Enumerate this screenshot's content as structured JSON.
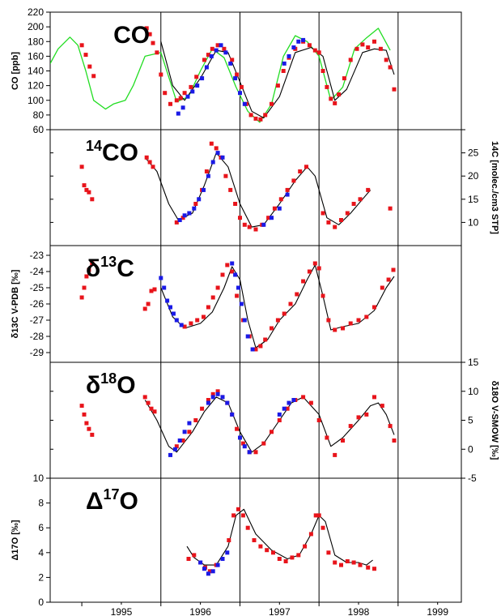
{
  "colors": {
    "red_series": "#e8141b",
    "blue_series": "#1a1ae6",
    "model_line": "#000000",
    "green_line": "#22dd22",
    "frame": "#000000"
  },
  "x_axis": {
    "ticks": [
      "1995",
      "1996",
      "1997",
      "1998",
      "1999"
    ],
    "range": [
      1994.6,
      1999.8
    ],
    "year_dividers": [
      1996.0,
      1997.0,
      1998.0,
      1999.0
    ]
  },
  "chart_data": [
    {
      "type": "scatter",
      "panel_title": "CO",
      "ylabel": "CO [ppb]",
      "ylim": [
        60,
        220
      ],
      "y_ticks": [
        60,
        80,
        100,
        120,
        140,
        160,
        180,
        200,
        220
      ],
      "series": [
        {
          "kind": "red",
          "x": [
            1995.0,
            1995.05,
            1995.1,
            1995.15,
            1995.82,
            1995.86,
            1995.9,
            1995.95,
            1996.0,
            1996.05,
            1996.12,
            1996.2,
            1996.25,
            1996.3,
            1996.38,
            1996.45,
            1996.55,
            1996.6,
            1996.65,
            1996.72,
            1996.8,
            1996.9,
            1996.96,
            1997.02,
            1997.08,
            1997.14,
            1997.2,
            1997.26,
            1997.32,
            1997.4,
            1997.48,
            1997.55,
            1997.62,
            1997.7,
            1997.8,
            1997.88,
            1997.95,
            1998.0,
            1998.05,
            1998.1,
            1998.15,
            1998.2,
            1998.25,
            1998.32,
            1998.4,
            1998.48,
            1998.55,
            1998.62,
            1998.7,
            1998.78,
            1998.85,
            1998.9,
            1998.95
          ],
          "y": [
            175,
            162,
            146,
            133,
            198,
            190,
            178,
            165,
            135,
            110,
            95,
            100,
            103,
            110,
            118,
            132,
            155,
            162,
            170,
            175,
            170,
            155,
            135,
            118,
            95,
            80,
            75,
            74,
            80,
            95,
            120,
            140,
            158,
            170,
            180,
            175,
            168,
            165,
            140,
            118,
            102,
            96,
            108,
            130,
            155,
            170,
            176,
            172,
            180,
            170,
            155,
            145,
            115
          ]
        },
        {
          "kind": "blue",
          "x": [
            1996.22,
            1996.28,
            1996.34,
            1996.4,
            1996.46,
            1996.52,
            1996.58,
            1996.64,
            1996.7,
            1996.76,
            1996.82,
            1996.88,
            1996.94,
            1997.0,
            1997.06,
            1997.56,
            1997.62,
            1997.68,
            1997.74,
            1997.8
          ],
          "y": [
            82,
            90,
            105,
            112,
            120,
            130,
            145,
            160,
            168,
            175,
            165,
            150,
            130,
            110,
            95,
            150,
            160,
            172,
            180,
            182
          ]
        }
      ],
      "model": {
        "x": [
          1996.0,
          1996.15,
          1996.3,
          1996.5,
          1996.7,
          1996.85,
          1997.0,
          1997.15,
          1997.3,
          1997.5,
          1997.7,
          1997.9,
          1998.05,
          1998.2,
          1998.35,
          1998.55,
          1998.7,
          1998.85,
          1998.95
        ],
        "y": [
          180,
          120,
          100,
          130,
          168,
          165,
          125,
          85,
          76,
          105,
          165,
          172,
          160,
          100,
          115,
          165,
          170,
          168,
          135
        ]
      },
      "green": {
        "x": [
          1994.6,
          1994.7,
          1994.85,
          1994.95,
          1995.05,
          1995.15,
          1995.3,
          1995.4,
          1995.55,
          1995.65,
          1995.8,
          1996.0,
          1996.2,
          1996.35,
          1996.5,
          1996.65,
          1996.8,
          1996.95,
          1997.1,
          1997.25,
          1997.4,
          1997.55,
          1997.7,
          1997.85,
          1998.0,
          1998.15,
          1998.3,
          1998.45,
          1998.6,
          1998.75,
          1998.9
        ],
        "y": [
          150,
          170,
          186,
          175,
          140,
          100,
          88,
          95,
          100,
          120,
          160,
          165,
          98,
          105,
          140,
          170,
          158,
          118,
          85,
          70,
          95,
          160,
          188,
          180,
          160,
          100,
          118,
          170,
          185,
          198,
          168
        ]
      }
    },
    {
      "type": "scatter",
      "panel_title": "14CO",
      "panel_title_base": "CO",
      "panel_title_sup": "14",
      "ylabel_right": "14C [molec./cm3 STP]",
      "ylim": [
        5,
        30
      ],
      "y_ticks": [
        10,
        15,
        20,
        25,
        30
      ],
      "y_tick_labels": [
        "10",
        "15",
        "20",
        "25"
      ],
      "series": [
        {
          "kind": "red",
          "x": [
            1995.0,
            1995.03,
            1995.06,
            1995.09,
            1995.13,
            1995.82,
            1995.86,
            1995.9,
            1996.2,
            1996.28,
            1996.36,
            1996.44,
            1996.52,
            1996.58,
            1996.64,
            1996.7,
            1996.76,
            1996.82,
            1996.88,
            1996.94,
            1997.0,
            1997.06,
            1997.12,
            1997.2,
            1997.28,
            1997.36,
            1997.44,
            1997.52,
            1997.6,
            1997.68,
            1997.76,
            1997.84,
            1998.05,
            1998.12,
            1998.2,
            1998.28,
            1998.36,
            1998.44,
            1998.52,
            1998.62,
            1998.9
          ],
          "y": [
            22,
            18,
            17,
            16.5,
            15,
            24,
            23,
            22,
            10,
            11,
            12,
            14,
            17,
            21,
            27,
            26,
            24,
            20,
            17,
            14,
            11,
            9.5,
            9,
            8.5,
            9.5,
            11,
            13,
            15,
            17,
            19,
            21,
            22,
            12,
            10,
            9,
            10.5,
            12,
            14,
            15,
            17,
            13
          ]
        },
        {
          "kind": "blue",
          "x": [
            1996.24,
            1996.3,
            1996.36,
            1996.42,
            1996.48,
            1996.54,
            1996.6,
            1996.66,
            1996.72,
            1996.78,
            1997.3,
            1997.4,
            1997.5,
            1997.6
          ],
          "y": [
            10.5,
            11.5,
            12,
            13,
            15,
            17,
            20,
            23,
            25,
            24,
            9.5,
            11,
            13,
            16
          ]
        }
      ],
      "model": {
        "x": [
          1995.8,
          1995.95,
          1996.1,
          1996.22,
          1996.4,
          1996.55,
          1996.7,
          1996.85,
          1997.0,
          1997.15,
          1997.3,
          1997.5,
          1997.7,
          1997.85,
          1997.95,
          1998.1,
          1998.25,
          1998.4,
          1998.55,
          1998.65
        ],
        "y": [
          24,
          21,
          14,
          10.5,
          12,
          18,
          25,
          22,
          14,
          9,
          9.5,
          14,
          19,
          22,
          20,
          11,
          9.5,
          12,
          15,
          17
        ]
      }
    },
    {
      "type": "scatter",
      "panel_title": "δ13C",
      "panel_title_base": "C",
      "panel_title_pre": "δ",
      "panel_title_sup": "13",
      "ylabel": "δ13C V-PDB [‰]",
      "ylim": [
        -29.6,
        -22.4
      ],
      "y_ticks": [
        -29,
        -28,
        -27,
        -26,
        -25,
        -24,
        -23
      ],
      "y_tick_labels": [
        "-29",
        "-28",
        "-27",
        "-26",
        "-25",
        "-24",
        "-23"
      ],
      "series": [
        {
          "kind": "red",
          "x": [
            1995.0,
            1995.03,
            1995.06,
            1995.09,
            1995.13,
            1995.8,
            1995.84,
            1995.88,
            1995.92,
            1996.3,
            1996.38,
            1996.46,
            1996.54,
            1996.6,
            1996.66,
            1996.72,
            1996.78,
            1996.84,
            1996.9,
            1996.96,
            1997.04,
            1997.12,
            1997.2,
            1997.26,
            1997.32,
            1997.4,
            1997.48,
            1997.56,
            1997.64,
            1997.72,
            1997.8,
            1997.88,
            1997.95,
            1998.0,
            1998.05,
            1998.12,
            1998.2,
            1998.3,
            1998.4,
            1998.5,
            1998.6,
            1998.7,
            1998.8,
            1998.88,
            1998.94
          ],
          "y": [
            -25.6,
            -25.0,
            -24.3,
            -23.9,
            -23.5,
            -26.3,
            -26.0,
            -25.2,
            -25.1,
            -27.4,
            -27.2,
            -27.0,
            -26.8,
            -26.2,
            -25.6,
            -25.0,
            -24.2,
            -23.6,
            -24.0,
            -25.5,
            -27.0,
            -28.0,
            -28.8,
            -28.6,
            -28.2,
            -27.5,
            -27.0,
            -26.6,
            -26.0,
            -25.4,
            -24.6,
            -24.0,
            -23.5,
            -23.8,
            -25.5,
            -27.0,
            -27.6,
            -27.5,
            -27.2,
            -27.0,
            -26.8,
            -26.2,
            -25.0,
            -24.5,
            -23.9
          ]
        },
        {
          "kind": "blue",
          "x": [
            1996.0,
            1996.04,
            1996.08,
            1996.12,
            1996.16,
            1996.2,
            1996.26,
            1996.9,
            1996.94,
            1996.98,
            1997.02,
            1997.06,
            1997.1,
            1997.16
          ],
          "y": [
            -24.4,
            -25.0,
            -25.8,
            -26.2,
            -26.6,
            -27.0,
            -27.3,
            -23.5,
            -24.2,
            -25.0,
            -26.0,
            -27.0,
            -28.0,
            -28.8
          ]
        }
      ],
      "model": {
        "x": [
          1996.0,
          1996.15,
          1996.3,
          1996.5,
          1996.65,
          1996.8,
          1996.9,
          1997.0,
          1997.1,
          1997.2,
          1997.35,
          1997.5,
          1997.7,
          1997.85,
          1997.95,
          1998.05,
          1998.15,
          1998.3,
          1998.5,
          1998.7,
          1998.85,
          1998.95
        ],
        "y": [
          -25.0,
          -26.8,
          -27.5,
          -27.2,
          -26.5,
          -25.0,
          -23.7,
          -24.5,
          -27.0,
          -28.7,
          -28.2,
          -27.0,
          -26.0,
          -24.5,
          -23.6,
          -25.5,
          -27.6,
          -27.4,
          -27.2,
          -26.4,
          -25.0,
          -24.3
        ]
      }
    },
    {
      "type": "scatter",
      "panel_title": "δ18O",
      "panel_title_base": "O",
      "panel_title_pre": "δ",
      "panel_title_sup": "18",
      "ylabel_right": "δ18O V-SMOW [‰]",
      "ylim": [
        -5,
        15
      ],
      "y_ticks": [
        -5,
        0,
        5,
        10,
        15
      ],
      "y_tick_labels": [
        "-5",
        "0",
        "5",
        "10",
        "15"
      ],
      "left_corner_label": "10",
      "series": [
        {
          "kind": "red",
          "x": [
            1995.0,
            1995.03,
            1995.06,
            1995.09,
            1995.13,
            1995.8,
            1995.84,
            1995.88,
            1995.92,
            1996.2,
            1996.28,
            1996.36,
            1996.44,
            1996.52,
            1996.6,
            1996.66,
            1996.72,
            1996.78,
            1996.84,
            1996.9,
            1996.96,
            1997.04,
            1997.12,
            1997.2,
            1997.3,
            1997.4,
            1997.5,
            1997.6,
            1997.7,
            1997.8,
            1997.9,
            1998.0,
            1998.1,
            1998.2,
            1998.3,
            1998.4,
            1998.5,
            1998.6,
            1998.7,
            1998.8,
            1998.9,
            1998.95
          ],
          "y": [
            7.5,
            6.0,
            4.5,
            3.5,
            2.5,
            9.0,
            8.0,
            7.0,
            6.5,
            0.5,
            1.5,
            3.0,
            5.0,
            7.0,
            8.5,
            9.5,
            10.0,
            9.0,
            8.0,
            6.0,
            3.5,
            1.0,
            -0.5,
            -0.5,
            1.0,
            3.0,
            5.0,
            7.0,
            8.5,
            9.0,
            8.0,
            5.0,
            2.0,
            -1.0,
            1.5,
            4.0,
            5.5,
            6.0,
            9.0,
            7.5,
            4.0,
            1.5
          ]
        },
        {
          "kind": "blue",
          "x": [
            1996.12,
            1996.18,
            1996.24,
            1996.3,
            1996.36,
            1996.6,
            1996.66,
            1996.72,
            1996.78,
            1996.84,
            1996.9,
            1997.0,
            1997.06,
            1997.12,
            1997.5,
            1997.56,
            1997.62,
            1997.68
          ],
          "y": [
            -1.0,
            0.0,
            1.5,
            3.0,
            4.5,
            8.0,
            9.0,
            9.5,
            9.0,
            8.0,
            6.0,
            2.0,
            0.5,
            -0.5,
            6.0,
            7.0,
            8.0,
            8.5
          ]
        }
      ],
      "model": {
        "x": [
          1995.8,
          1995.95,
          1996.1,
          1996.2,
          1996.4,
          1996.55,
          1996.7,
          1996.85,
          1997.0,
          1997.15,
          1997.3,
          1997.5,
          1997.65,
          1997.8,
          1998.0,
          1998.15,
          1998.3,
          1998.5,
          1998.65,
          1998.75,
          1998.85,
          1998.95
        ],
        "y": [
          8.5,
          5.0,
          0.5,
          -0.5,
          3.0,
          6.5,
          9.0,
          8.0,
          3.0,
          -0.5,
          1.0,
          5.0,
          8.0,
          9.0,
          6.0,
          0.5,
          2.0,
          5.0,
          7.5,
          8.0,
          6.0,
          2.5
        ]
      }
    },
    {
      "type": "scatter",
      "panel_title": "Δ17O",
      "panel_title_base": "O",
      "panel_title_pre": "Δ",
      "panel_title_sup": "17",
      "ylabel": "Δ17O [‰]",
      "ylim": [
        0,
        10
      ],
      "y_ticks": [
        0,
        2,
        4,
        6,
        8,
        10
      ],
      "y_tick_labels": [
        "0",
        "2",
        "4",
        "6",
        "8"
      ],
      "series": [
        {
          "kind": "red",
          "x": [
            1996.35,
            1996.42,
            1996.5,
            1996.56,
            1996.62,
            1996.7,
            1996.78,
            1996.86,
            1996.92,
            1996.98,
            1997.04,
            1997.1,
            1997.18,
            1997.26,
            1997.34,
            1997.42,
            1997.5,
            1997.58,
            1997.66,
            1997.74,
            1997.82,
            1997.9,
            1997.96,
            1998.0,
            1998.05,
            1998.12,
            1998.2,
            1998.28,
            1998.36,
            1998.44,
            1998.52,
            1998.62,
            1998.7
          ],
          "y": [
            3.5,
            3.8,
            3.2,
            2.8,
            2.5,
            3.0,
            3.5,
            5.0,
            7.0,
            7.5,
            7.0,
            6.0,
            5.0,
            4.5,
            4.2,
            4.0,
            3.5,
            3.3,
            3.6,
            3.8,
            4.5,
            5.5,
            7.0,
            7.0,
            6.0,
            4.0,
            3.2,
            3.0,
            3.3,
            3.2,
            3.0,
            2.8,
            2.7
          ]
        },
        {
          "kind": "blue",
          "x": [
            1996.5,
            1996.55,
            1996.6,
            1996.66,
            1996.72,
            1996.78,
            1996.84
          ],
          "y": [
            3.2,
            2.7,
            2.3,
            2.5,
            3.0,
            3.5,
            4.0
          ]
        }
      ],
      "model": {
        "x": [
          1996.33,
          1996.42,
          1996.55,
          1996.7,
          1996.85,
          1996.95,
          1997.05,
          1997.2,
          1997.4,
          1997.6,
          1997.75,
          1997.9,
          1998.0,
          1998.08,
          1998.2,
          1998.35,
          1998.5,
          1998.6,
          1998.68
        ],
        "y": [
          4.5,
          3.6,
          3.0,
          3.0,
          4.5,
          7.0,
          7.5,
          5.5,
          4.2,
          3.5,
          3.8,
          5.5,
          7.0,
          6.5,
          3.8,
          3.2,
          3.2,
          3.0,
          3.4
        ]
      }
    }
  ]
}
